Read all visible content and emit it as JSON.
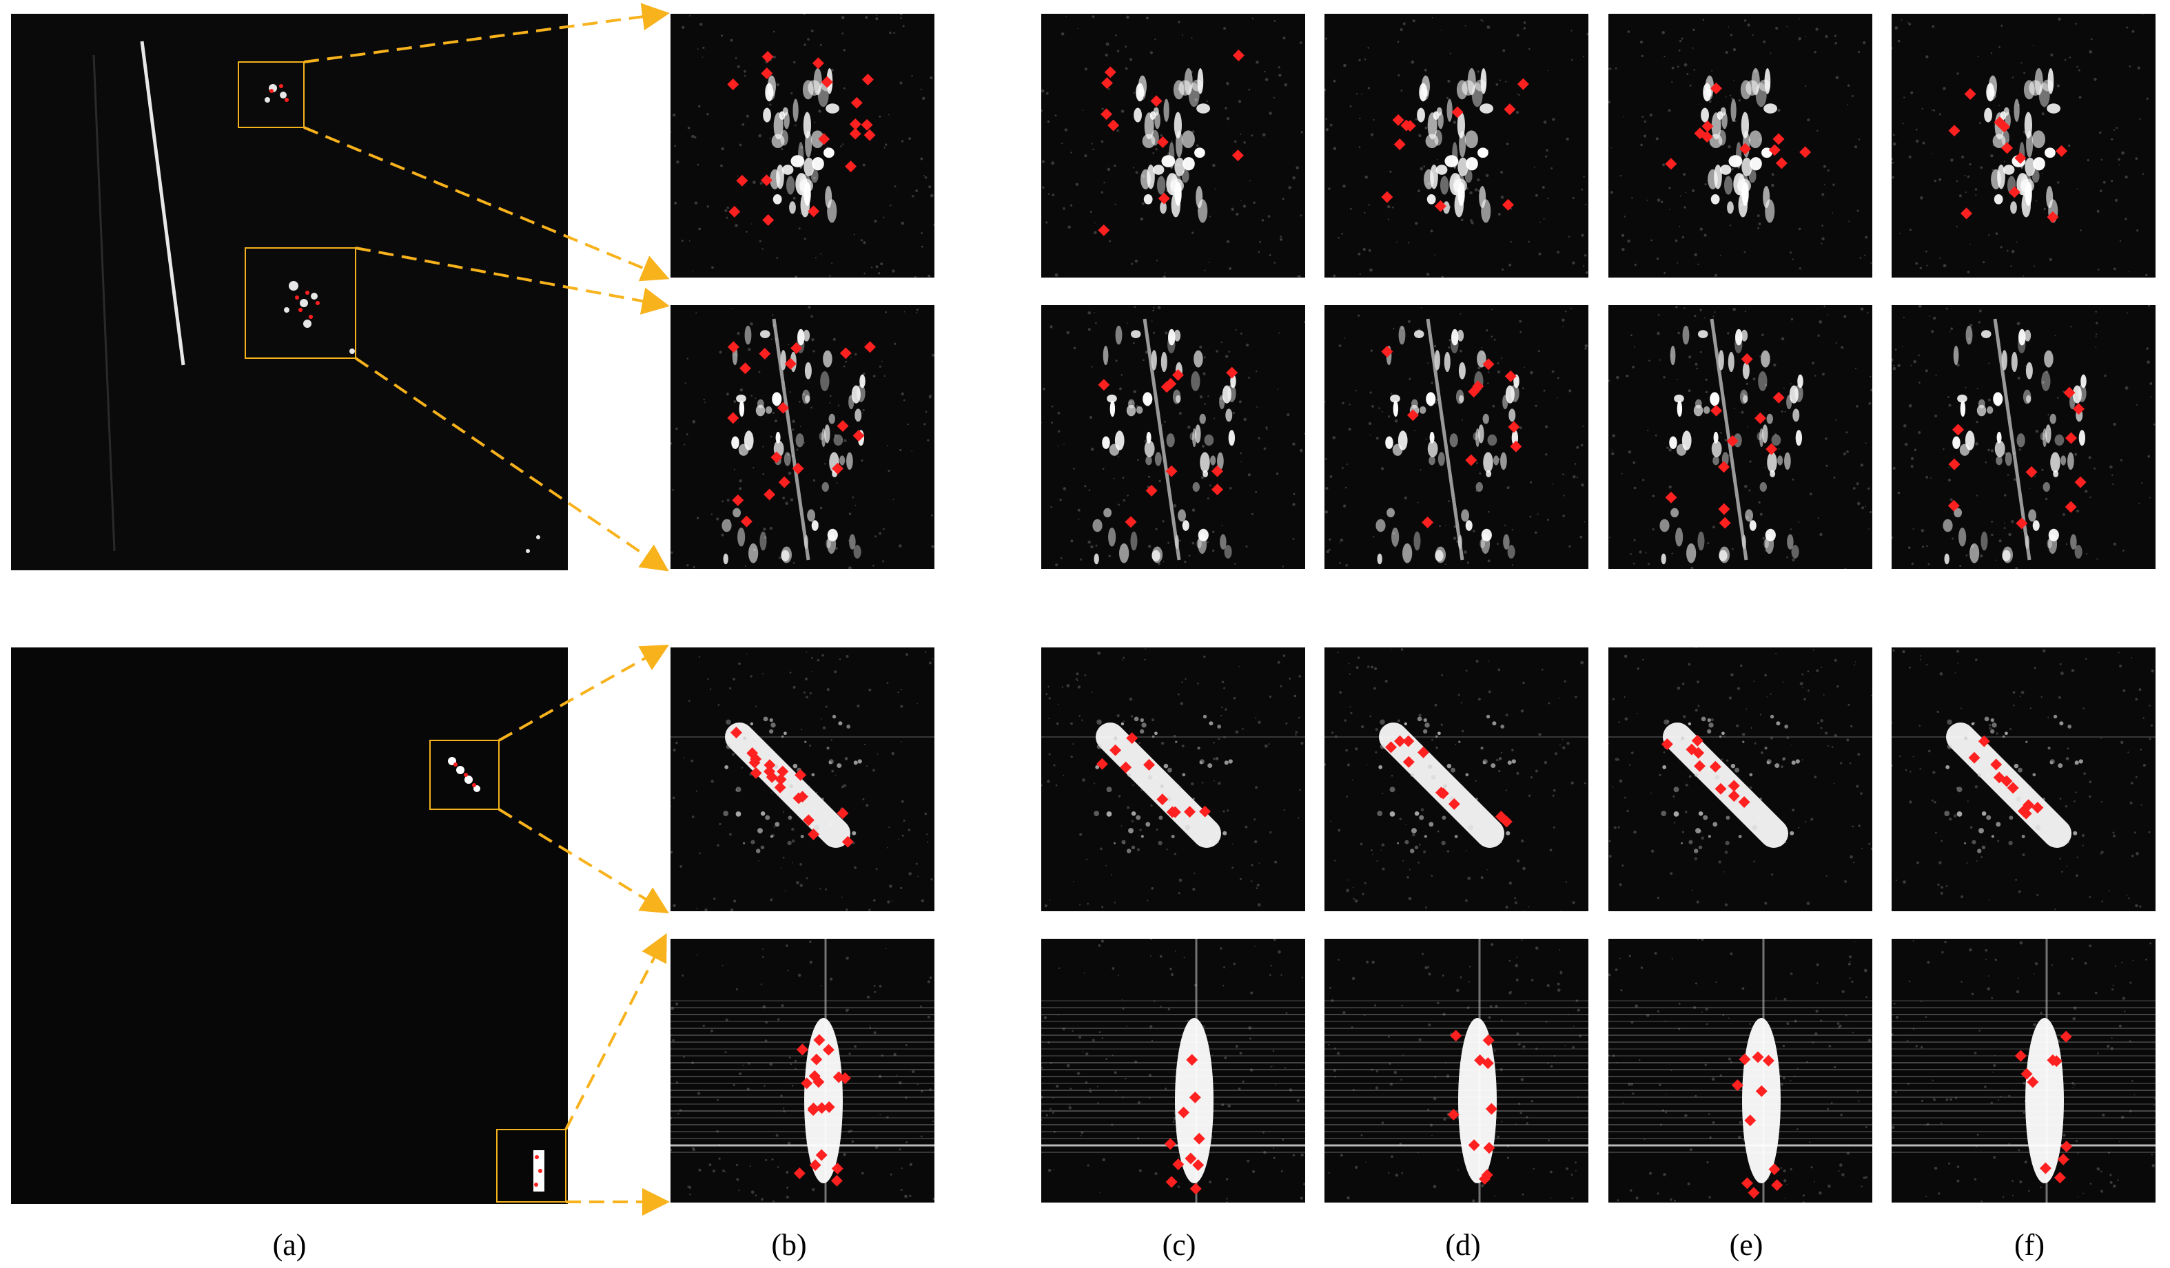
{
  "figure": {
    "captions": [
      "(a)",
      "(b)",
      "(c)",
      "(d)",
      "(e)",
      "(f)"
    ],
    "colors": {
      "keypoint": "#ff2020",
      "zoom_box": "#f5b21b",
      "zoom_arrow": "#f7b21c",
      "background": "#070707",
      "scatter": "#ffffff"
    },
    "rows": [
      {
        "id": "row-1",
        "source_group": "top",
        "target": "ship-cluster-1"
      },
      {
        "id": "row-2",
        "source_group": "top",
        "target": "ship-cluster-2"
      },
      {
        "id": "row-3",
        "source_group": "bottom",
        "target": "ship-diagonal"
      },
      {
        "id": "row-4",
        "source_group": "bottom",
        "target": "ship-vertical"
      }
    ]
  }
}
